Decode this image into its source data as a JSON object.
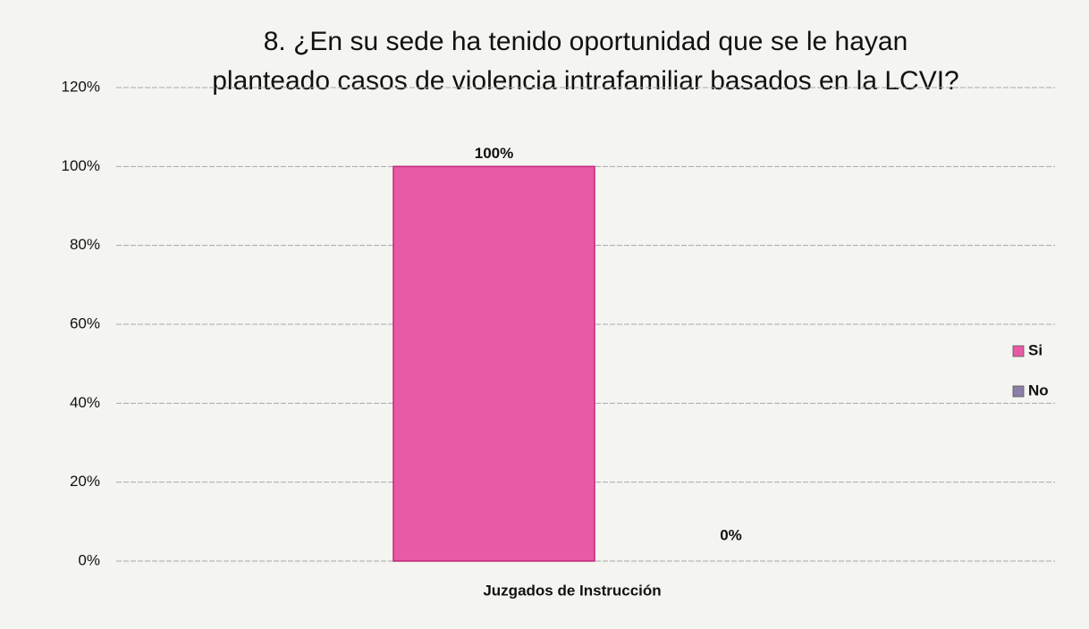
{
  "chart_data": {
    "type": "bar",
    "title": [
      "8. ¿En su sede ha tenido oportunidad que se le hayan",
      "planteado casos de violencia intrafamiliar basados en la LCVI?"
    ],
    "categories": [
      "Juzgados de Instrucción"
    ],
    "series": [
      {
        "name": "Si",
        "color": "#e95aa6",
        "values": [
          100
        ],
        "value_labels": [
          "100%"
        ]
      },
      {
        "name": "No",
        "color": "#8c80a8",
        "values": [
          0
        ],
        "value_labels": [
          "0%"
        ]
      }
    ],
    "ylim": [
      0,
      120
    ],
    "yticks": [
      {
        "value": 0,
        "label": "0%"
      },
      {
        "value": 20,
        "label": "20%"
      },
      {
        "value": 40,
        "label": "40%"
      },
      {
        "value": 60,
        "label": "60%"
      },
      {
        "value": 80,
        "label": "80%"
      },
      {
        "value": 100,
        "label": "100%"
      },
      {
        "value": 120,
        "label": "120%"
      }
    ],
    "grid": true,
    "legend": "right"
  }
}
